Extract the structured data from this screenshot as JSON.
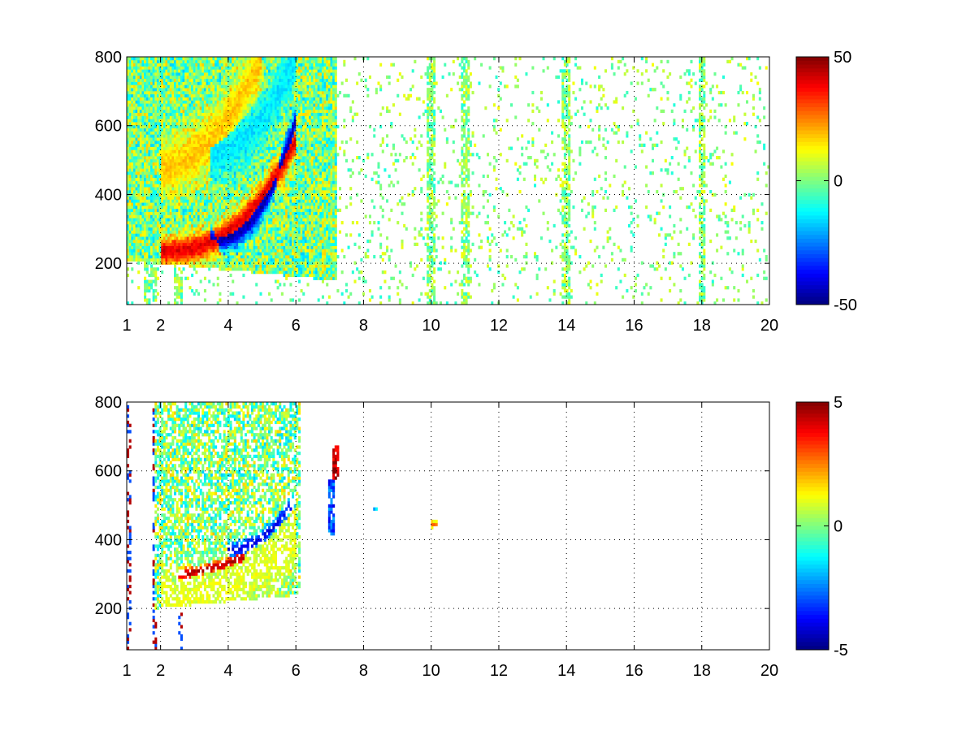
{
  "chart_data": [
    {
      "type": "heatmap",
      "title": "",
      "xlabel": "",
      "ylabel": "",
      "xlim": [
        1,
        20
      ],
      "ylim": [
        80,
        800
      ],
      "x_ticks": [
        1,
        2,
        4,
        6,
        8,
        10,
        12,
        14,
        16,
        18,
        20
      ],
      "y_ticks": [
        200,
        400,
        600,
        800
      ],
      "grid": true,
      "colormap": "jet",
      "colorbar": {
        "min": -50,
        "max": 50,
        "ticks": [
          -50,
          0,
          50
        ]
      },
      "features": [
        {
          "type": "ridge",
          "sign": "positive",
          "value": 40,
          "x": [
            2.0,
            6.0
          ],
          "y": [
            235,
            560
          ],
          "curvature": 2.5,
          "width": 30
        },
        {
          "type": "ridge",
          "sign": "negative",
          "value": -45,
          "x": [
            3.5,
            6.0
          ],
          "y": [
            270,
            620
          ],
          "curvature": 2.5,
          "width": 26
        },
        {
          "type": "ridge",
          "sign": "positive",
          "value": 18,
          "x": [
            2.0,
            5.0
          ],
          "y": [
            480,
            800
          ],
          "curvature": 2.0,
          "width": 60
        },
        {
          "type": "ridge",
          "sign": "negative",
          "value": -15,
          "x": [
            3.5,
            6.0
          ],
          "y": [
            520,
            800
          ],
          "curvature": 2.0,
          "width": 55
        }
      ],
      "dense_region": {
        "x": [
          1,
          7.2
        ],
        "ymin_at_start": 210,
        "ymin_at_end": 150
      },
      "sparse_noise": {
        "x": [
          6,
          20
        ],
        "range": [
          -10,
          12
        ]
      },
      "stripes_x": [
        1.6,
        1.75,
        2.5,
        10.0,
        11.0,
        14.0,
        18.0
      ]
    },
    {
      "type": "heatmap",
      "title": "",
      "xlabel": "",
      "ylabel": "",
      "xlim": [
        1,
        20
      ],
      "ylim": [
        80,
        800
      ],
      "x_ticks": [
        1,
        2,
        4,
        6,
        8,
        10,
        12,
        14,
        16,
        18,
        20
      ],
      "y_ticks": [
        200,
        400,
        600,
        800
      ],
      "grid": true,
      "colormap": "jet",
      "colorbar": {
        "min": -5,
        "max": 5,
        "ticks": [
          -5,
          0,
          5
        ]
      },
      "features": [
        {
          "type": "ridge",
          "sign": "positive",
          "value": 4.5,
          "x": [
            2.5,
            4.5
          ],
          "y": [
            300,
            350
          ],
          "curvature": 1.5,
          "width": 14
        },
        {
          "type": "ridge",
          "sign": "negative",
          "value": -4,
          "x": [
            4.0,
            6.0
          ],
          "y": [
            370,
            520
          ],
          "curvature": 2.0,
          "width": 16
        },
        {
          "type": "ridge",
          "sign": "positive",
          "value": 1.0,
          "x": [
            2.0,
            6.0
          ],
          "y": [
            220,
            400
          ],
          "curvature": 2.0,
          "width": 70
        }
      ],
      "dense_region": {
        "x": [
          1.8,
          6.1
        ],
        "ymin_at_start": 200,
        "ymin_at_end": 240
      },
      "blobs": [
        {
          "x": 7.15,
          "y": [
            580,
            670
          ],
          "value": 4.5
        },
        {
          "x": 7.05,
          "y": [
            420,
            570
          ],
          "value": -3
        },
        {
          "x": 8.4,
          "y": [
            490,
            490
          ],
          "value": -2
        },
        {
          "x": 10.1,
          "y": [
            440,
            450
          ],
          "value": 2
        }
      ],
      "stripes_x": [
        1.05,
        1.1,
        1.8,
        1.85,
        2.6
      ]
    }
  ]
}
